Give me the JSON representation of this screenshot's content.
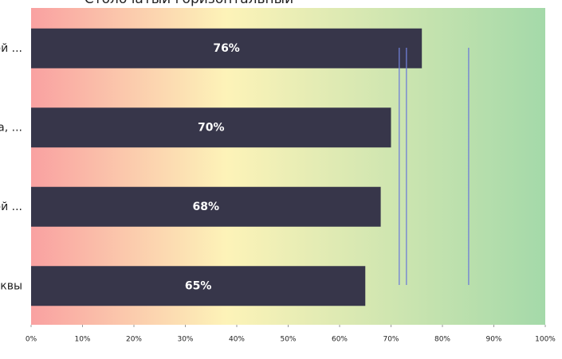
{
  "chart_data": {
    "type": "bar",
    "orientation": "horizontal",
    "title": "Столбчатый горизонтальный",
    "categories": [
      "ой ...",
      "ра, ...",
      "ой ...",
      "квы"
    ],
    "values": [
      76,
      70,
      68,
      65
    ],
    "value_labels": [
      "76%",
      "70%",
      "68%",
      "65%"
    ],
    "color": "#37364a",
    "reference_lines": [
      71.6,
      73,
      85.1
    ],
    "reference_color": "#6f7fd6",
    "xlim": [
      0,
      100
    ],
    "xticks": [
      {
        "value": 0,
        "label": "0%"
      },
      {
        "value": 10,
        "label": "10%"
      },
      {
        "value": 20,
        "label": "20%"
      },
      {
        "value": 30,
        "label": "30%"
      },
      {
        "value": 40,
        "label": "40%"
      },
      {
        "value": 50,
        "label": "50%"
      },
      {
        "value": 60,
        "label": "60%"
      },
      {
        "value": 70,
        "label": "70%"
      },
      {
        "value": 80,
        "label": "80%"
      },
      {
        "value": 90,
        "label": "90%"
      },
      {
        "value": 100,
        "label": "100%"
      }
    ]
  }
}
